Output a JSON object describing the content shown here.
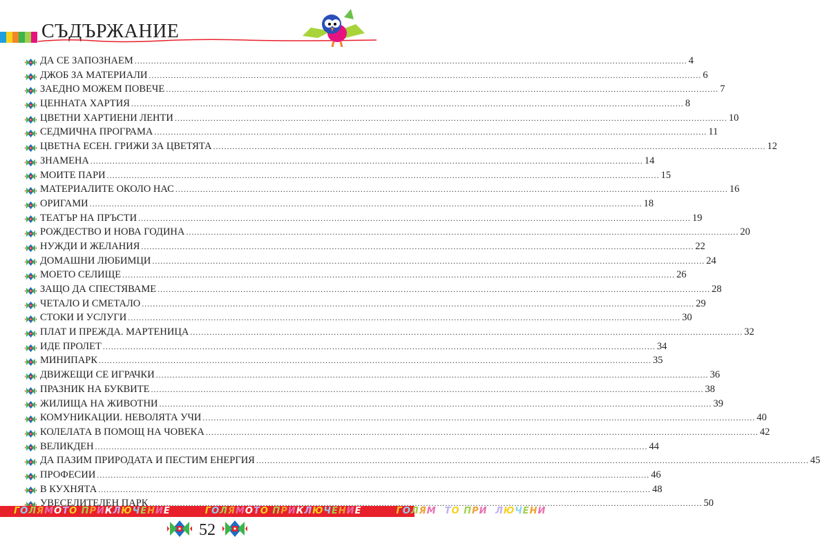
{
  "header": {
    "title": "СЪДЪРЖАНИЕ",
    "stripe_colors": [
      "#1ea0e0",
      "#f7d21d",
      "#f0862a",
      "#3cb54a",
      "#a3cf4f",
      "#e6137e"
    ],
    "accent_line_color": "#e8202a"
  },
  "toc": [
    {
      "title": "ДА СЕ ЗАПОЗНАЕМ",
      "page": "4"
    },
    {
      "title": "ДЖОБ ЗА МАТЕРИАЛИ",
      "page": "6"
    },
    {
      "title": "ЗАЕДНО МОЖЕМ ПОВЕЧЕ",
      "page": "7"
    },
    {
      "title": "ЦЕННАТА ХАРТИЯ",
      "page": "8"
    },
    {
      "title": "ЦВЕТНИ ХАРТИЕНИ ЛЕНТИ",
      "page": "10"
    },
    {
      "title": "СЕДМИЧНА ПРОГРАМА",
      "page": "11"
    },
    {
      "title": "ЦВЕТНА ЕСЕН. ГРИЖИ ЗА ЦВЕТЯТА",
      "page": "12"
    },
    {
      "title": "ЗНАМЕНА",
      "page": "14"
    },
    {
      "title": "МОИТЕ ПАРИ",
      "page": "15"
    },
    {
      "title": "МАТЕРИАЛИТЕ ОКОЛО НАС",
      "page": "16"
    },
    {
      "title": "ОРИГАМИ",
      "page": "18"
    },
    {
      "title": "ТЕАТЪР НА ПРЪСТИ",
      "page": "19"
    },
    {
      "title": "РОЖДЕСТВО И НОВА ГОДИНА",
      "page": "20"
    },
    {
      "title": "НУЖДИ И ЖЕЛАНИЯ",
      "page": "22"
    },
    {
      "title": "ДОМАШНИ ЛЮБИМЦИ",
      "page": "24"
    },
    {
      "title": "МОЕТО СЕЛИЩЕ",
      "page": "26"
    },
    {
      "title": "ЗАЩО ДА СПЕСТЯВАМЕ",
      "page": "28"
    },
    {
      "title": "ЧЕТАЛО И СМЕТАЛО",
      "page": "29"
    },
    {
      "title": "СТОКИ И УСЛУГИ",
      "page": "30"
    },
    {
      "title": "ПЛАТ И ПРЕЖДА. МАРТЕНИЦА",
      "page": "32"
    },
    {
      "title": "ИДЕ ПРОЛЕТ",
      "page": "34"
    },
    {
      "title": "МИНИПАРК",
      "page": "35"
    },
    {
      "title": "ДВИЖЕЩИ СЕ ИГРАЧКИ",
      "page": "36"
    },
    {
      "title": "ПРАЗНИК НА БУКВИТЕ",
      "page": "38"
    },
    {
      "title": "ЖИЛИЩА НА ЖИВОТНИ",
      "page": "39"
    },
    {
      "title": "КОМУНИКАЦИИ. НЕВОЛЯТА УЧИ",
      "page": "40"
    },
    {
      "title": "КОЛЕЛАТА В ПОМОЩ НА ЧОВЕКА",
      "page": "42"
    },
    {
      "title": "ВЕЛИКДЕН",
      "page": "44"
    },
    {
      "title": "ДА ПАЗИМ ПРИРОДАТА И ПЕСТИМ ЕНЕРГИЯ",
      "page": "45"
    },
    {
      "title": "ПРОФЕСИИ",
      "page": "46"
    },
    {
      "title": "В КУХНЯТА",
      "page": "48"
    },
    {
      "title": "УВЕСЕЛИТЕЛЕН ПАРК",
      "page": "50"
    }
  ],
  "footer": {
    "band_text": "ГОЛЯМОТО ПРИКЛЮЧЕНИЕ",
    "band_color": "#e8202a",
    "page_number": "52"
  }
}
